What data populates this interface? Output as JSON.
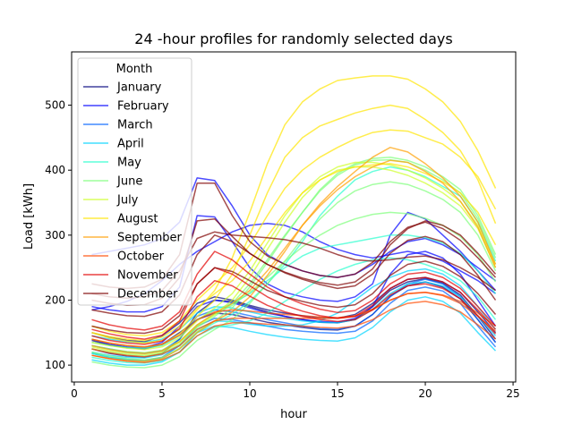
{
  "chart_data": {
    "type": "line",
    "title": "24 -hour profiles for randomly selected days",
    "xlabel": "hour",
    "ylabel": "Load [kWh]",
    "xlim": [
      -0.15,
      25.15
    ],
    "ylim": [
      74,
      582
    ],
    "xticks": [
      0,
      5,
      10,
      15,
      20,
      25
    ],
    "yticks": [
      100,
      200,
      300,
      400,
      500
    ],
    "grid": false,
    "legend": {
      "title": "Month",
      "placement": "upper-left",
      "entries": [
        "January",
        "February",
        "March",
        "April",
        "May",
        "June",
        "July",
        "August",
        "September",
        "October",
        "November",
        "December"
      ]
    },
    "x": [
      1,
      2,
      3,
      4,
      5,
      6,
      7,
      8,
      9,
      10,
      11,
      12,
      13,
      14,
      15,
      16,
      17,
      18,
      19,
      20,
      21,
      22,
      23,
      24
    ],
    "colors": {
      "January": "#00007f",
      "February": "#0000ff",
      "March": "#0063ff",
      "April": "#00d4ff",
      "May": "#29ffce",
      "June": "#7dff7a",
      "July": "#ceff29",
      "August": "#ffe600",
      "September": "#ff9f00",
      "October": "#ff4a00",
      "November": "#e30000",
      "December": "#7f0000"
    },
    "series": [
      {
        "name": "January",
        "values": [
          150,
          143,
          138,
          136,
          145,
          165,
          195,
          205,
          200,
          192,
          185,
          180,
          176,
          173,
          172,
          178,
          195,
          218,
          232,
          235,
          228,
          212,
          182,
          150
        ]
      },
      {
        "name": "January",
        "values": [
          125,
          118,
          114,
          112,
          118,
          140,
          180,
          200,
          198,
          190,
          182,
          175,
          170,
          166,
          165,
          170,
          190,
          215,
          228,
          233,
          226,
          208,
          175,
          140
        ]
      },
      {
        "name": "January",
        "values": [
          138,
          131,
          127,
          125,
          132,
          150,
          170,
          180,
          178,
          172,
          166,
          162,
          158,
          155,
          154,
          160,
          178,
          206,
          222,
          228,
          220,
          202,
          170,
          135
        ]
      },
      {
        "name": "February",
        "values": [
          140,
          132,
          128,
          127,
          135,
          160,
          190,
          200,
          196,
          188,
          180,
          175,
          170,
          167,
          166,
          172,
          190,
          240,
          270,
          275,
          265,
          240,
          200,
          160
        ]
      },
      {
        "name": "February",
        "values": [
          270,
          275,
          280,
          285,
          295,
          320,
          388,
          384,
          345,
          300,
          270,
          255,
          245,
          238,
          235,
          240,
          255,
          275,
          290,
          295,
          285,
          270,
          250,
          230
        ]
      },
      {
        "name": "February",
        "values": [
          190,
          185,
          182,
          182,
          190,
          220,
          330,
          328,
          290,
          250,
          225,
          212,
          205,
          200,
          198,
          205,
          225,
          300,
          335,
          325,
          300,
          275,
          245,
          215
        ]
      },
      {
        "name": "February",
        "values": [
          185,
          190,
          198,
          210,
          230,
          255,
          275,
          290,
          305,
          315,
          318,
          315,
          305,
          290,
          278,
          270,
          265,
          270,
          275,
          270,
          260,
          245,
          230,
          210
        ]
      },
      {
        "name": "March",
        "values": [
          130,
          125,
          120,
          118,
          122,
          140,
          175,
          185,
          182,
          176,
          170,
          165,
          160,
          156,
          155,
          160,
          178,
          205,
          225,
          232,
          225,
          205,
          170,
          135
        ]
      },
      {
        "name": "March",
        "values": [
          118,
          112,
          109,
          107,
          112,
          130,
          160,
          172,
          170,
          165,
          160,
          155,
          152,
          150,
          149,
          152,
          168,
          195,
          215,
          220,
          214,
          195,
          160,
          128
        ]
      },
      {
        "name": "April",
        "values": [
          108,
          103,
          100,
          100,
          105,
          120,
          150,
          160,
          158,
          152,
          147,
          143,
          140,
          138,
          137,
          142,
          158,
          182,
          200,
          205,
          198,
          180,
          150,
          122
        ]
      },
      {
        "name": "April",
        "values": [
          145,
          140,
          136,
          135,
          140,
          155,
          180,
          190,
          188,
          182,
          176,
          172,
          168,
          166,
          165,
          170,
          186,
          210,
          225,
          228,
          222,
          205,
          175,
          145
        ]
      },
      {
        "name": "April",
        "values": [
          120,
          115,
          112,
          111,
          116,
          130,
          155,
          168,
          167,
          163,
          160,
          160,
          162,
          168,
          180,
          200,
          220,
          235,
          245,
          248,
          240,
          222,
          190,
          155
        ]
      },
      {
        "name": "May",
        "values": [
          112,
          107,
          104,
          103,
          107,
          120,
          145,
          158,
          162,
          168,
          180,
          198,
          215,
          232,
          245,
          255,
          262,
          265,
          262,
          255,
          245,
          230,
          205,
          170
        ]
      },
      {
        "name": "May",
        "values": [
          135,
          130,
          127,
          126,
          130,
          145,
          170,
          185,
          195,
          210,
          230,
          250,
          268,
          280,
          285,
          290,
          295,
          300,
          300,
          296,
          288,
          272,
          245,
          210
        ]
      },
      {
        "name": "May",
        "values": [
          118,
          112,
          108,
          106,
          110,
          125,
          150,
          165,
          178,
          198,
          225,
          255,
          290,
          330,
          360,
          385,
          398,
          405,
          400,
          390,
          375,
          360,
          320,
          260
        ]
      },
      {
        "name": "June",
        "values": [
          125,
          120,
          116,
          114,
          118,
          132,
          158,
          175,
          195,
          225,
          262,
          300,
          335,
          370,
          395,
          410,
          418,
          420,
          415,
          405,
          390,
          370,
          330,
          270
        ]
      },
      {
        "name": "June",
        "values": [
          120,
          114,
          110,
          108,
          112,
          126,
          152,
          168,
          188,
          220,
          258,
          298,
          335,
          368,
          392,
          408,
          415,
          416,
          412,
          400,
          385,
          365,
          325,
          265
        ]
      },
      {
        "name": "June",
        "values": [
          105,
          100,
          97,
          96,
          100,
          113,
          138,
          155,
          170,
          195,
          225,
          260,
          295,
          325,
          350,
          368,
          378,
          382,
          378,
          368,
          355,
          335,
          300,
          245
        ]
      },
      {
        "name": "June",
        "values": [
          130,
          125,
          121,
          119,
          123,
          137,
          162,
          178,
          192,
          212,
          235,
          260,
          282,
          300,
          315,
          325,
          332,
          335,
          333,
          326,
          315,
          298,
          270,
          228
        ]
      },
      {
        "name": "July",
        "values": [
          128,
          122,
          118,
          116,
          120,
          135,
          160,
          178,
          200,
          235,
          278,
          320,
          358,
          385,
          400,
          405,
          405,
          400,
          392,
          380,
          365,
          345,
          310,
          250
        ]
      },
      {
        "name": "July",
        "values": [
          135,
          130,
          126,
          124,
          128,
          142,
          168,
          188,
          210,
          245,
          288,
          330,
          365,
          390,
          405,
          412,
          412,
          408,
          400,
          388,
          372,
          352,
          315,
          255
        ]
      },
      {
        "name": "August",
        "values": [
          150,
          142,
          137,
          134,
          138,
          155,
          185,
          215,
          265,
          335,
          410,
          470,
          505,
          525,
          538,
          542,
          545,
          545,
          540,
          525,
          505,
          475,
          430,
          372
        ]
      },
      {
        "name": "August",
        "values": [
          140,
          134,
          130,
          128,
          132,
          148,
          175,
          200,
          240,
          300,
          365,
          420,
          450,
          468,
          478,
          488,
          495,
          500,
          495,
          478,
          458,
          430,
          385,
          318
        ]
      },
      {
        "name": "August",
        "values": [
          160,
          152,
          147,
          145,
          150,
          168,
          200,
          225,
          250,
          285,
          330,
          372,
          400,
          420,
          435,
          448,
          458,
          462,
          460,
          450,
          440,
          420,
          390,
          340
        ]
      },
      {
        "name": "August",
        "values": [
          150,
          144,
          140,
          138,
          143,
          160,
          188,
          210,
          230,
          260,
          298,
          335,
          365,
          385,
          398,
          405,
          408,
          410,
          405,
          395,
          382,
          365,
          335,
          285
        ]
      },
      {
        "name": "September",
        "values": [
          115,
          110,
          107,
          106,
          110,
          125,
          150,
          168,
          182,
          205,
          238,
          275,
          315,
          348,
          375,
          398,
          420,
          435,
          428,
          410,
          388,
          360,
          320,
          255
        ]
      },
      {
        "name": "September",
        "values": [
          130,
          124,
          120,
          118,
          122,
          136,
          162,
          180,
          195,
          215,
          245,
          280,
          315,
          345,
          370,
          390,
          405,
          415,
          412,
          398,
          380,
          352,
          312,
          250
        ]
      },
      {
        "name": "October",
        "values": [
          125,
          119,
          115,
          113,
          117,
          130,
          155,
          168,
          172,
          172,
          172,
          172,
          172,
          172,
          172,
          175,
          185,
          200,
          210,
          212,
          208,
          198,
          180,
          160
        ]
      },
      {
        "name": "October",
        "values": [
          115,
          110,
          106,
          104,
          108,
          120,
          145,
          160,
          165,
          165,
          163,
          162,
          160,
          158,
          157,
          160,
          170,
          185,
          195,
          198,
          193,
          182,
          162,
          140
        ]
      },
      {
        "name": "October",
        "values": [
          140,
          134,
          130,
          128,
          132,
          146,
          170,
          182,
          185,
          183,
          180,
          178,
          176,
          174,
          173,
          176,
          186,
          200,
          210,
          212,
          207,
          195,
          175,
          152
        ]
      },
      {
        "name": "November",
        "values": [
          155,
          148,
          143,
          140,
          146,
          168,
          225,
          250,
          240,
          222,
          205,
          192,
          183,
          176,
          172,
          175,
          192,
          218,
          232,
          235,
          228,
          212,
          185,
          155
        ]
      },
      {
        "name": "November",
        "values": [
          170,
          162,
          157,
          154,
          160,
          182,
          240,
          275,
          262,
          240,
          220,
          205,
          194,
          186,
          181,
          184,
          200,
          225,
          240,
          243,
          235,
          218,
          190,
          160
        ]
      },
      {
        "name": "November",
        "values": [
          145,
          138,
          134,
          132,
          137,
          156,
          205,
          230,
          222,
          206,
          192,
          182,
          175,
          170,
          167,
          170,
          185,
          208,
          222,
          225,
          218,
          202,
          176,
          148
        ]
      },
      {
        "name": "December",
        "values": [
          185,
          180,
          176,
          175,
          182,
          208,
          270,
          300,
          290,
          272,
          255,
          242,
          232,
          224,
          218,
          222,
          240,
          272,
          292,
          298,
          290,
          270,
          238,
          200
        ]
      },
      {
        "name": "December",
        "values": [
          225,
          220,
          218,
          220,
          232,
          270,
          380,
          380,
          330,
          290,
          268,
          255,
          245,
          238,
          235,
          240,
          258,
          290,
          312,
          320,
          310,
          292,
          265,
          235
        ]
      },
      {
        "name": "December",
        "values": [
          200,
          195,
          192,
          193,
          203,
          235,
          322,
          325,
          298,
          272,
          255,
          243,
          234,
          227,
          223,
          228,
          248,
          285,
          310,
          322,
          315,
          300,
          272,
          240
        ]
      },
      {
        "name": "December",
        "values": [
          210,
          205,
          203,
          205,
          215,
          245,
          295,
          305,
          300,
          298,
          296,
          293,
          288,
          280,
          270,
          262,
          260,
          262,
          266,
          268,
          262,
          250,
          235,
          215
        ]
      },
      {
        "name": "December",
        "values": [
          160,
          154,
          150,
          149,
          155,
          176,
          225,
          250,
          244,
          230,
          215,
          205,
          198,
          192,
          189,
          193,
          210,
          238,
          255,
          260,
          252,
          236,
          210,
          178
        ]
      }
    ]
  }
}
